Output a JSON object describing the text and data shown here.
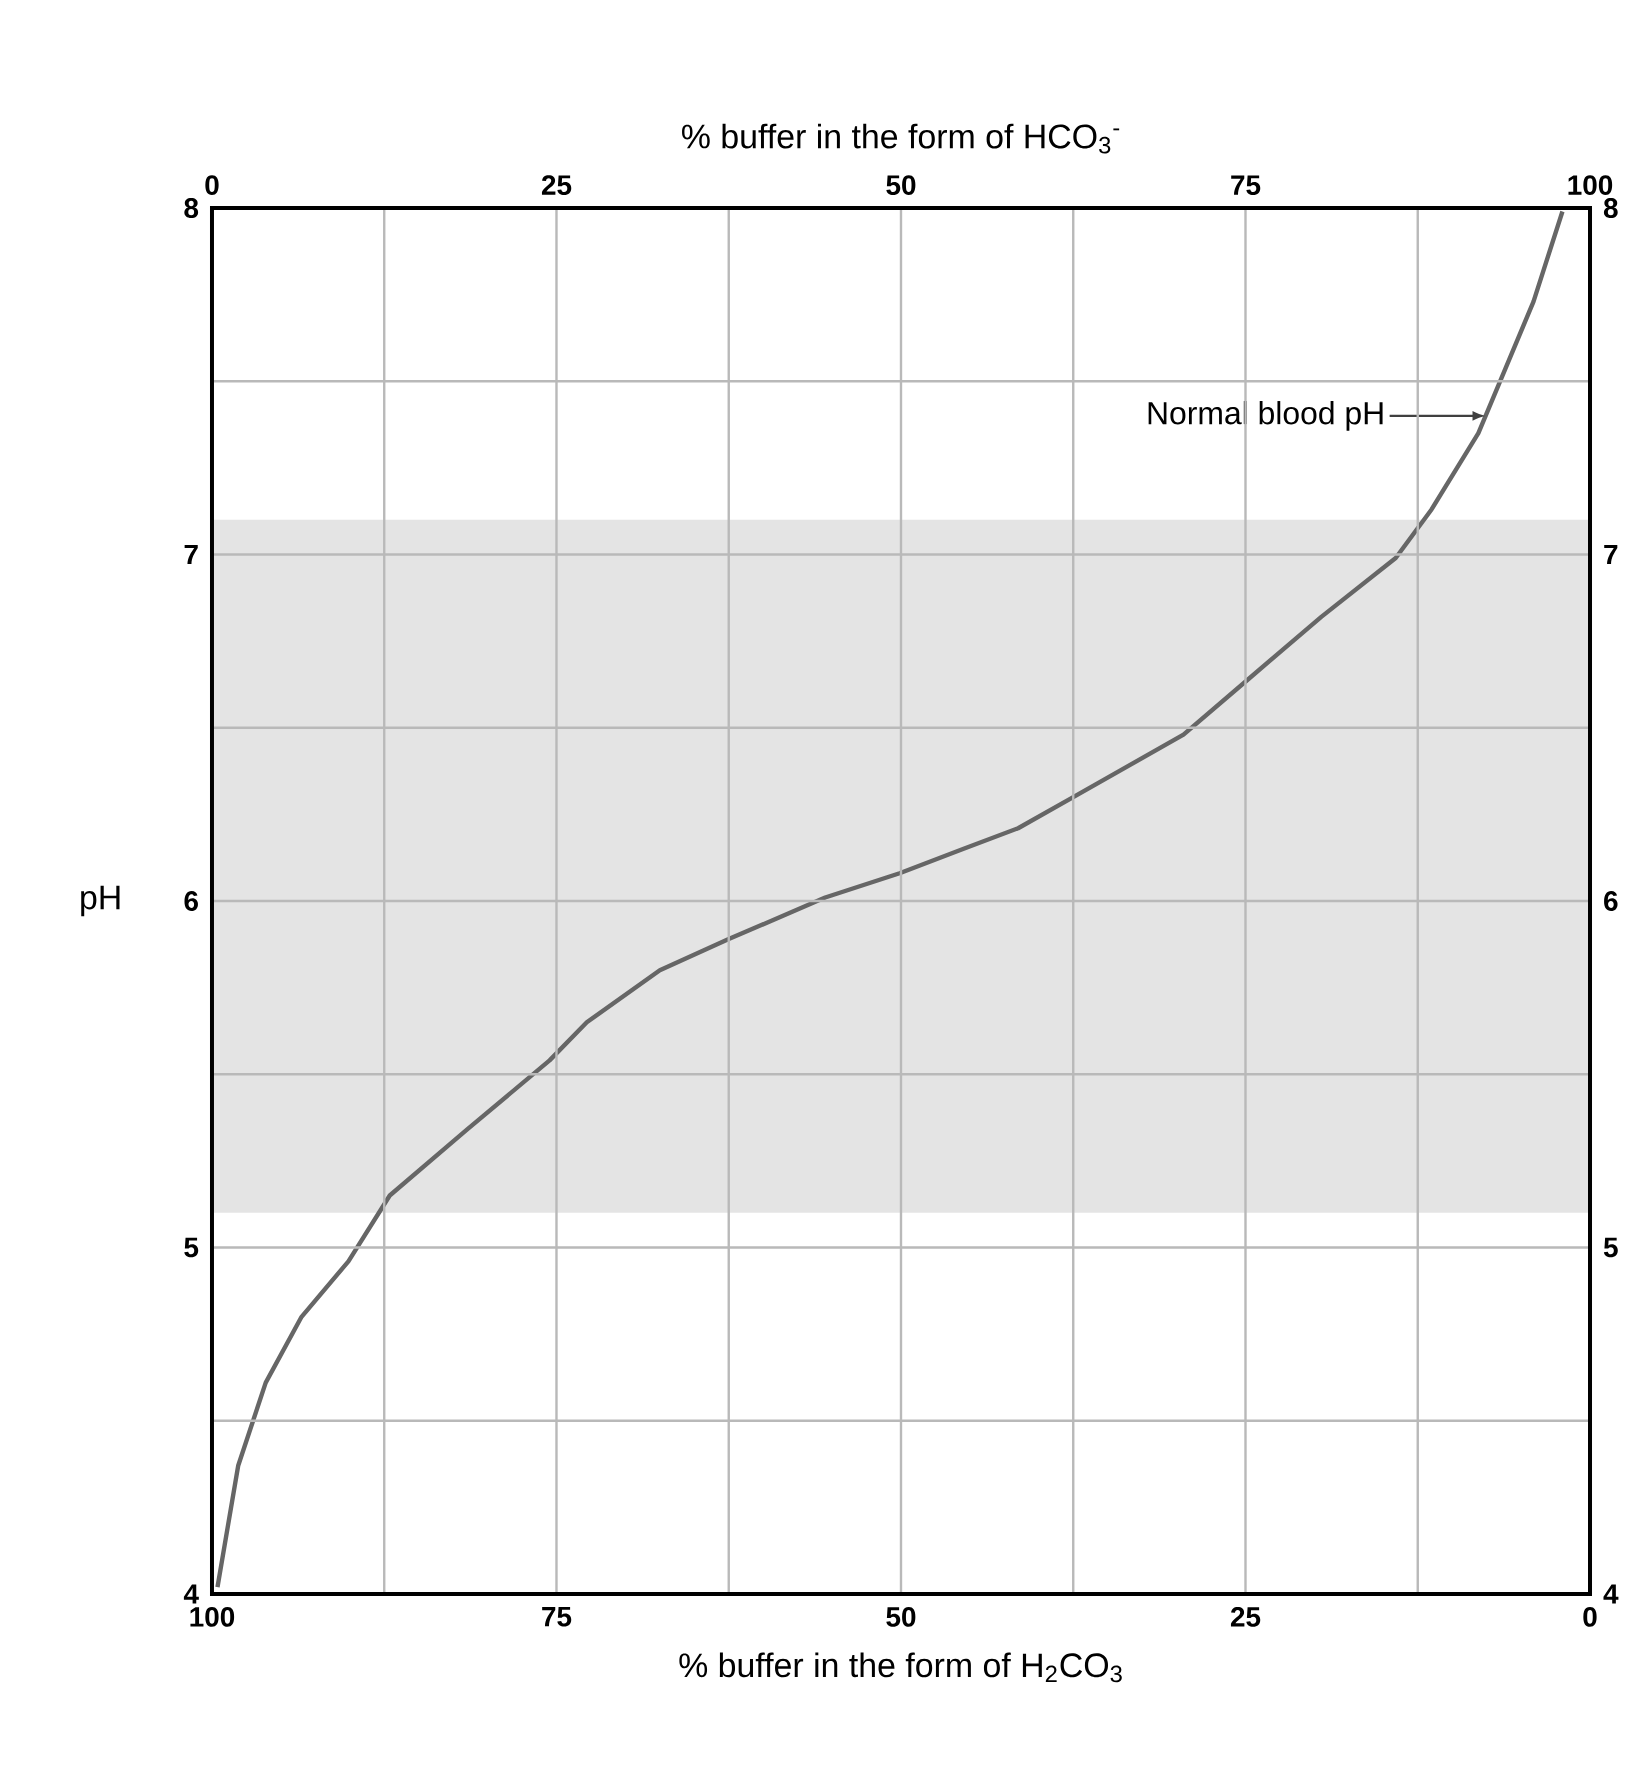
{
  "chart_data": {
    "type": "line",
    "xlabel": "% buffer in the form of H$_{2}$CO$_{3}$",
    "x2label": "% buffer in the form of HCO$_{3}$$^{-}$",
    "ylabel": "pH",
    "xlim": [
      100,
      0
    ],
    "xticks": [
      100,
      {
        "value": 87.5,
        "label": null
      },
      75,
      {
        "value": 62.5,
        "label": null
      },
      50,
      {
        "value": 37.5,
        "label": null
      },
      25,
      {
        "value": 12.5,
        "label": null
      },
      0
    ],
    "x2lim": [
      0,
      100
    ],
    "x2ticks": [
      0,
      25,
      50,
      75,
      100
    ],
    "ylim": [
      4,
      8
    ],
    "yticks": [
      4,
      {
        "value": 4.5,
        "label": null
      },
      5,
      {
        "value": 5.5,
        "label": null
      },
      6,
      {
        "value": 6.5,
        "label": null
      },
      7,
      {
        "value": 7.5,
        "label": null
      },
      8
    ],
    "y2lim": [
      4,
      8
    ],
    "y2ticks": [
      4,
      5,
      6,
      7,
      8
    ],
    "grid": true,
    "bands": [
      {
        "axis": "y",
        "from": 5.1,
        "to": 7.1,
        "color": "#e4e4e4"
      }
    ],
    "annotations": [
      {
        "text": "Normal blood pH",
        "x": 7.6,
        "y": 7.4
      }
    ],
    "x": [
      99.6,
      98.1,
      96.1,
      93.5,
      90.1,
      87.1,
      81.5,
      75.5,
      72.8,
      67.5,
      62.5,
      55.5,
      50.1,
      45.5,
      41.5,
      37.5,
      33.5,
      29.5,
      24.8,
      19.5,
      14.1,
      11.5,
      8.1,
      6.1,
      4.1,
      2.0
    ],
    "series": [
      {
        "color": "#666666",
        "values": [
          4.02,
          4.37,
          4.61,
          4.8,
          4.96,
          5.15,
          5.34,
          5.54,
          5.65,
          5.8,
          5.89,
          6.01,
          6.08,
          6.15,
          6.21,
          6.3,
          6.39,
          6.48,
          6.64,
          6.82,
          6.99,
          7.13,
          7.35,
          7.54,
          7.73,
          7.99
        ]
      }
    ]
  }
}
